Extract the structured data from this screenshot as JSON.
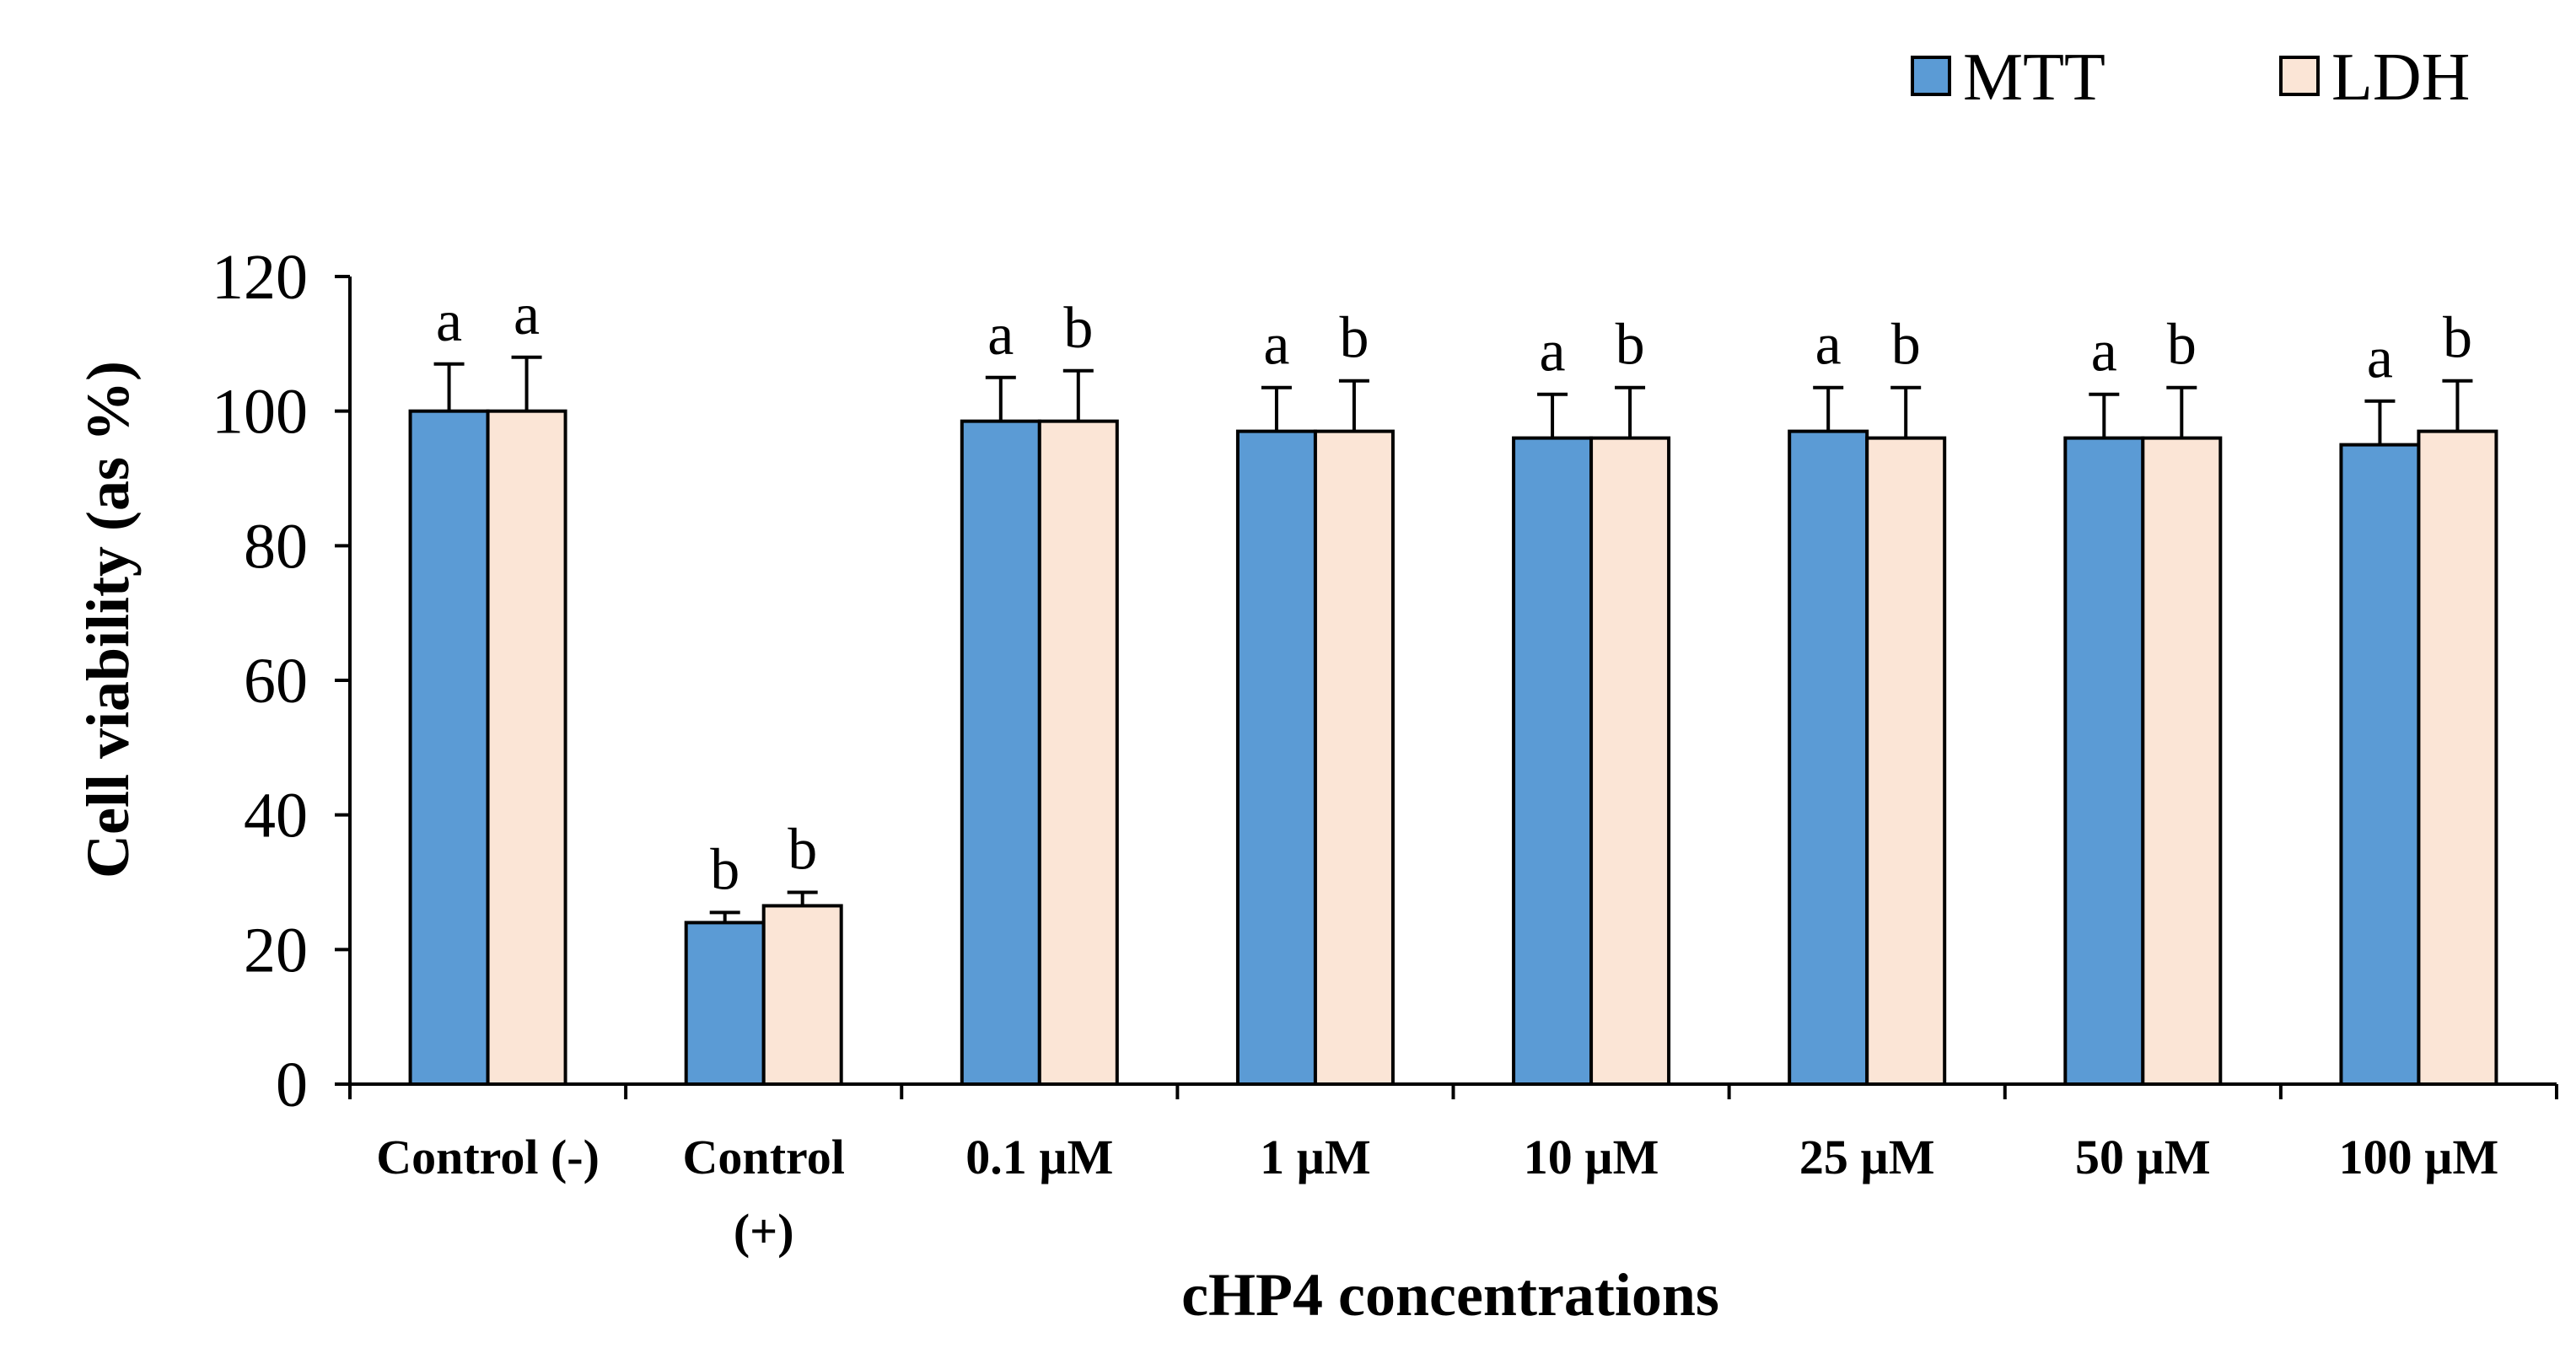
{
  "chart_data": {
    "type": "bar",
    "categories": [
      [
        "Control (-)"
      ],
      [
        "Control",
        "(+)"
      ],
      [
        "0.1 µM"
      ],
      [
        "1 µM"
      ],
      [
        "10 µM"
      ],
      [
        "25 µM"
      ],
      [
        "50 µM"
      ],
      [
        "100 µM"
      ]
    ],
    "series": [
      {
        "name": "MTT",
        "color": "#5b9bd5",
        "values": [
          100,
          24,
          98.5,
          97,
          96,
          97,
          96,
          95
        ],
        "errors": [
          7,
          1.5,
          6.5,
          6.5,
          6.5,
          6.5,
          6.5,
          6.5
        ],
        "letters": [
          "a",
          "b",
          "a",
          "a",
          "a",
          "a",
          "a",
          "a"
        ]
      },
      {
        "name": "LDH",
        "color": "#fbe5d6",
        "values": [
          100,
          26.5,
          98.5,
          97,
          96,
          96,
          96,
          97
        ],
        "errors": [
          8,
          2,
          7.5,
          7.5,
          7.5,
          7.5,
          7.5,
          7.5
        ],
        "letters": [
          "a",
          "b",
          "b",
          "b",
          "b",
          "b",
          "b",
          "b"
        ]
      }
    ],
    "title": "",
    "xlabel": "cHP4 concentrations",
    "ylabel": "Cell viability (as %)",
    "ylim": [
      0,
      120
    ],
    "yticks": [
      0,
      20,
      40,
      60,
      80,
      100,
      120
    ],
    "grid": false,
    "legend": "top-right"
  }
}
